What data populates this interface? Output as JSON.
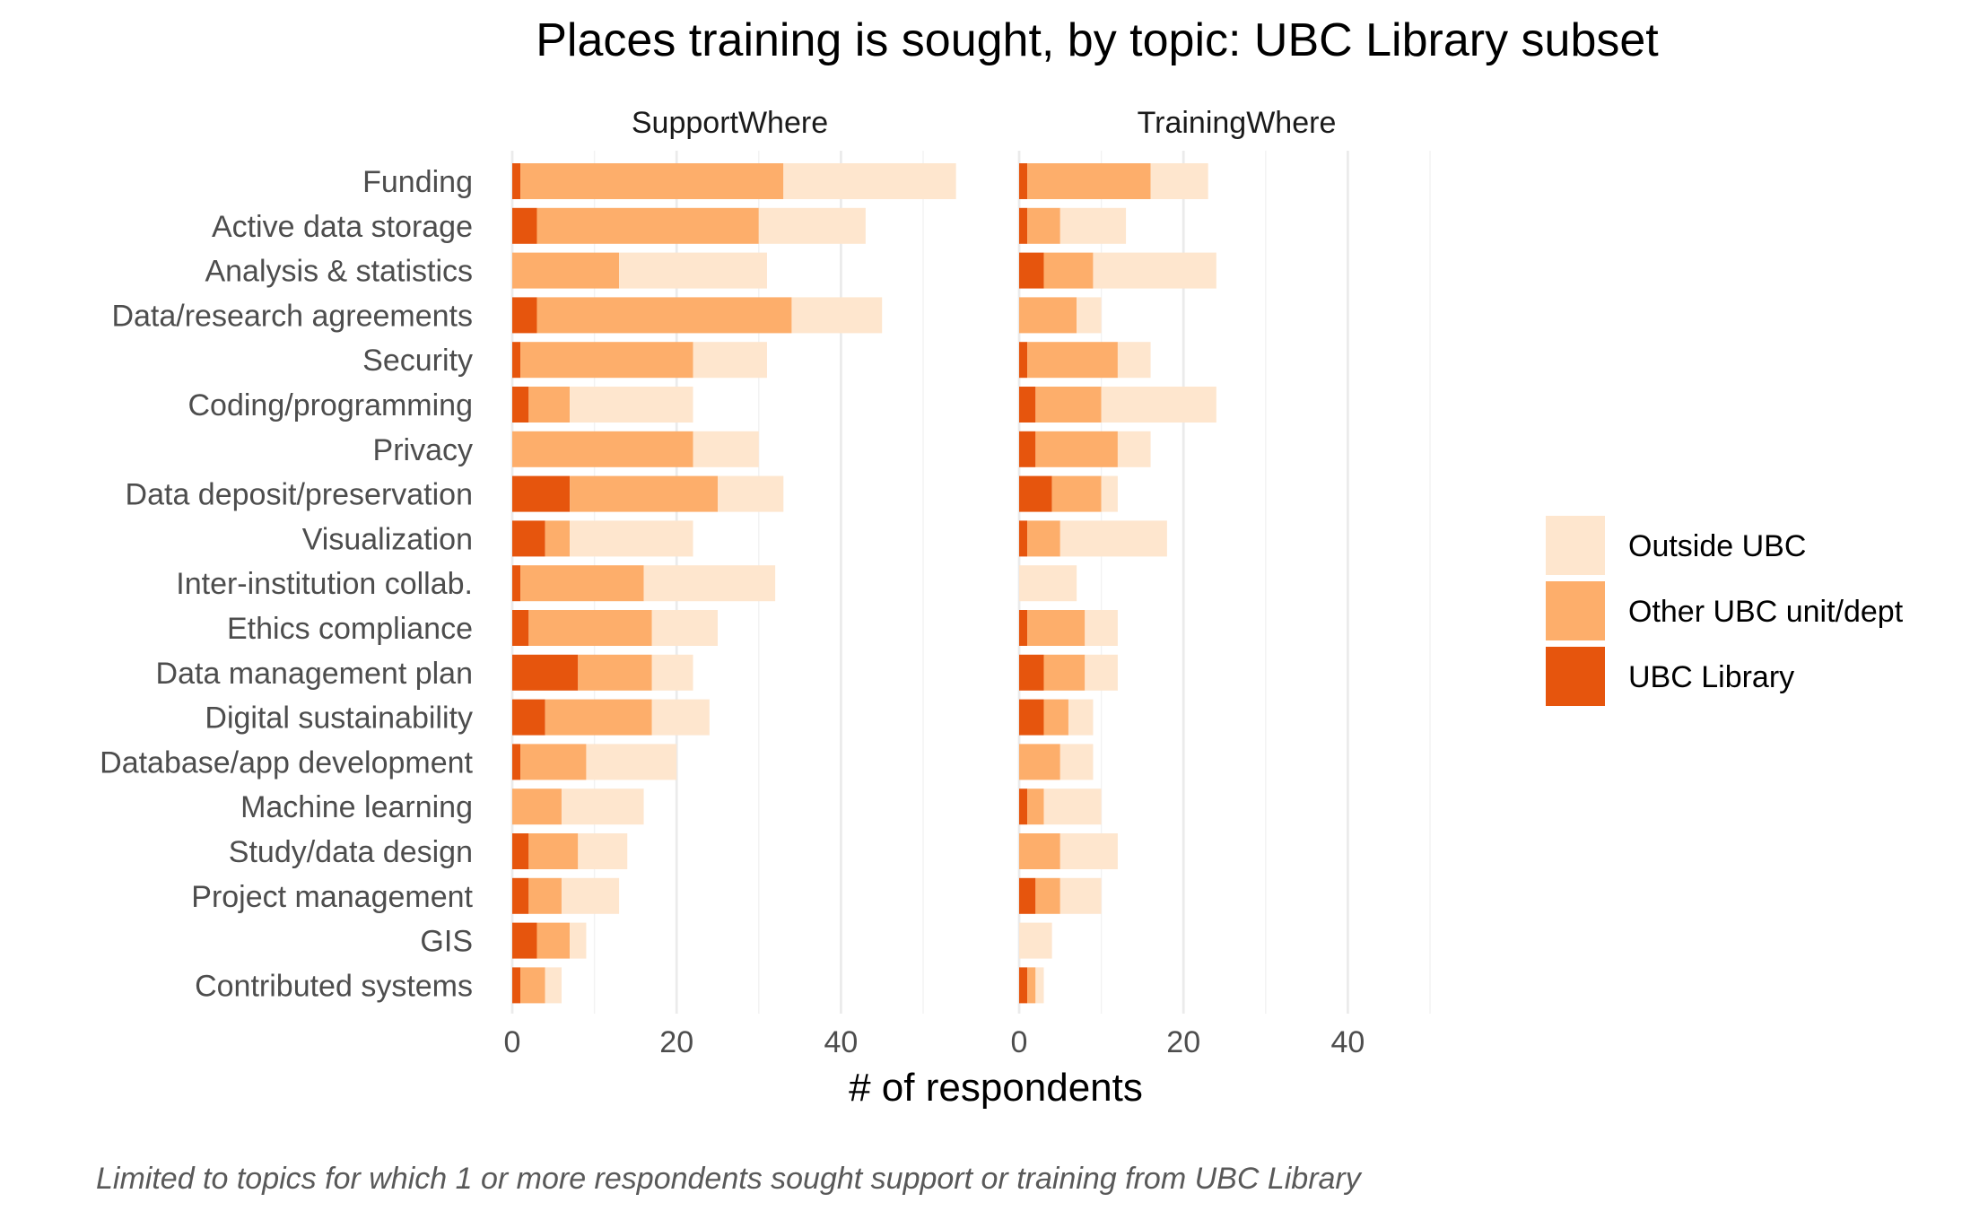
{
  "chart_data": {
    "type": "bar",
    "orientation": "horizontal",
    "stacked": true,
    "title": "Places training is sought, by topic: UBC Library subset",
    "xlabel": "# of respondents",
    "ylabel": "",
    "caption": "Limited to topics for which 1 or more respondents sought support or training from UBC Library",
    "xlim": [
      0,
      50
    ],
    "xticks": [
      0,
      20,
      40
    ],
    "grid": true,
    "legend_position": "right",
    "legend": [
      "Outside UBC",
      "Other UBC unit/dept",
      "UBC Library"
    ],
    "colors": {
      "UBC Library": "#e6550d",
      "Other UBC unit/dept": "#fdae6b",
      "Outside UBC": "#fee6ce"
    },
    "categories": [
      "Funding",
      "Active data storage",
      "Analysis & statistics",
      "Data/research agreements",
      "Security",
      "Coding/programming",
      "Privacy",
      "Data deposit/preservation",
      "Visualization",
      "Inter-institution collab.",
      "Ethics compliance",
      "Data management plan",
      "Digital sustainability",
      "Database/app development",
      "Machine learning",
      "Study/data design",
      "Project management",
      "GIS",
      "Contributed systems"
    ],
    "panels": [
      {
        "name": "SupportWhere",
        "series": [
          {
            "name": "UBC Library",
            "values": [
              1,
              3,
              0,
              3,
              1,
              2,
              0,
              7,
              4,
              1,
              2,
              8,
              4,
              1,
              0,
              2,
              2,
              3,
              1
            ]
          },
          {
            "name": "Other UBC unit/dept",
            "values": [
              32,
              27,
              13,
              31,
              21,
              5,
              22,
              18,
              3,
              15,
              15,
              9,
              13,
              8,
              6,
              6,
              4,
              4,
              3
            ]
          },
          {
            "name": "Outside UBC",
            "values": [
              21,
              13,
              18,
              11,
              9,
              15,
              8,
              8,
              15,
              16,
              8,
              5,
              7,
              11,
              10,
              6,
              7,
              2,
              2
            ]
          }
        ]
      },
      {
        "name": "TrainingWhere",
        "series": [
          {
            "name": "UBC Library",
            "values": [
              1,
              1,
              3,
              0,
              1,
              2,
              2,
              4,
              1,
              0,
              1,
              3,
              3,
              0,
              1,
              0,
              2,
              0,
              1
            ]
          },
          {
            "name": "Other UBC unit/dept",
            "values": [
              15,
              4,
              6,
              7,
              11,
              8,
              10,
              6,
              4,
              0,
              7,
              5,
              3,
              5,
              2,
              5,
              3,
              0,
              1
            ]
          },
          {
            "name": "Outside UBC",
            "values": [
              7,
              8,
              15,
              3,
              4,
              14,
              4,
              2,
              13,
              7,
              4,
              4,
              3,
              4,
              7,
              7,
              5,
              4,
              1
            ]
          }
        ]
      }
    ]
  }
}
